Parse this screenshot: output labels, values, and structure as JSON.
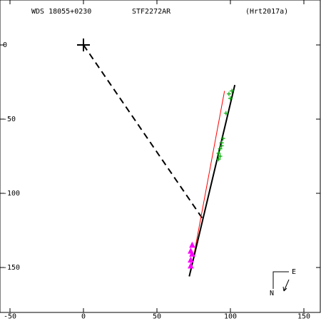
{
  "header": {
    "wds_id": "WDS 18055+0230",
    "discoverer": "STF2272AR",
    "reference": "(Hrt2017a)"
  },
  "compass": {
    "east_label": "E",
    "north_label": "N"
  },
  "colors": {
    "axes": "#000000",
    "orbit_fit": "#000000",
    "alt_fit": "#ff0000",
    "connector": "#000000",
    "early_points": "#ff00ff",
    "late_points": "#00aa00",
    "primary": "#000000"
  },
  "chart_data": {
    "type": "scatter",
    "title": "",
    "xlabel": "",
    "ylabel": "",
    "xlim": [
      -50,
      160
    ],
    "ylim": [
      -175,
      30
    ],
    "x_ticks": [
      -50,
      0,
      50,
      100,
      150
    ],
    "y_ticks": [
      0,
      -50,
      -100,
      -150
    ],
    "x_tick_labels": [
      "-50",
      "0",
      "50",
      "100",
      "150"
    ],
    "y_tick_labels": [
      "0",
      "-50",
      "-100",
      "-150"
    ],
    "grid": false,
    "primary": {
      "x": 0,
      "y": 0
    },
    "connector": {
      "from": [
        0,
        0
      ],
      "to": [
        81,
        -117
      ]
    },
    "fit_line": {
      "from": [
        72,
        -156
      ],
      "to": [
        103,
        -27
      ]
    },
    "alt_line": {
      "from": [
        73,
        -153
      ],
      "to": [
        96,
        -31
      ]
    },
    "series": [
      {
        "marker": "triangle",
        "points": [
          [
            74,
            -135
          ],
          [
            73,
            -139
          ],
          [
            74,
            -141
          ],
          [
            73,
            -145
          ],
          [
            73,
            -149
          ]
        ]
      },
      {
        "marker": "plus",
        "points": [
          [
            93,
            -70
          ],
          [
            92,
            -73
          ],
          [
            94,
            -68
          ],
          [
            94,
            -66
          ],
          [
            95,
            -63
          ],
          [
            93,
            -75
          ],
          [
            92,
            -77
          ],
          [
            97,
            -46
          ],
          [
            100,
            -36
          ],
          [
            99,
            -33
          ],
          [
            101,
            -31
          ]
        ]
      }
    ]
  }
}
